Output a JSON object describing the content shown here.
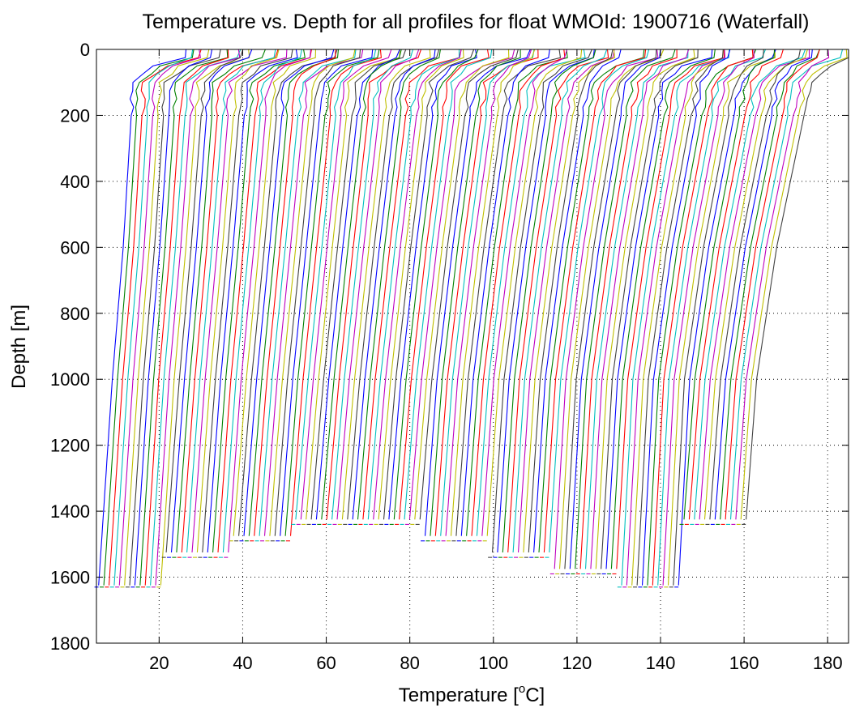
{
  "chart_data": {
    "type": "line",
    "title": "Temperature vs. Depth for all profiles for float WMOId: 1900716 (Waterfall)",
    "xlabel_main": "Temperature [",
    "xlabel_sup": "o",
    "xlabel_end": "C]",
    "ylabel": "Depth [m]",
    "xlim": [
      5,
      185
    ],
    "ylim": [
      0,
      1800
    ],
    "y_inverted": true,
    "grid": true,
    "x_ticks": [
      20,
      40,
      60,
      80,
      100,
      120,
      140,
      160,
      180
    ],
    "y_ticks": [
      0,
      200,
      400,
      600,
      800,
      1000,
      1200,
      1400,
      1600,
      1800
    ],
    "profile_count": 126,
    "waterfall_offset_per_profile": 1.23,
    "series_colors": [
      "#0000ff",
      "#008000",
      "#ff0000",
      "#00bfbf",
      "#bf00bf",
      "#bfbf00",
      "#404040"
    ],
    "first_profile": {
      "surface_temp": 26.5,
      "temp_at_100m": 13.8,
      "temp_at_600m": 11.4,
      "temp_at_1000m": 8.8,
      "bottom_temp": 5.5,
      "bottom_depth": 1630
    },
    "last_profile": {
      "surface_temp": 184.5,
      "temp_at_100m": 176.0,
      "temp_at_600m": 167.8,
      "temp_at_1000m": 163.0,
      "bottom_temp": 160.4,
      "bottom_depth": 1440
    }
  }
}
